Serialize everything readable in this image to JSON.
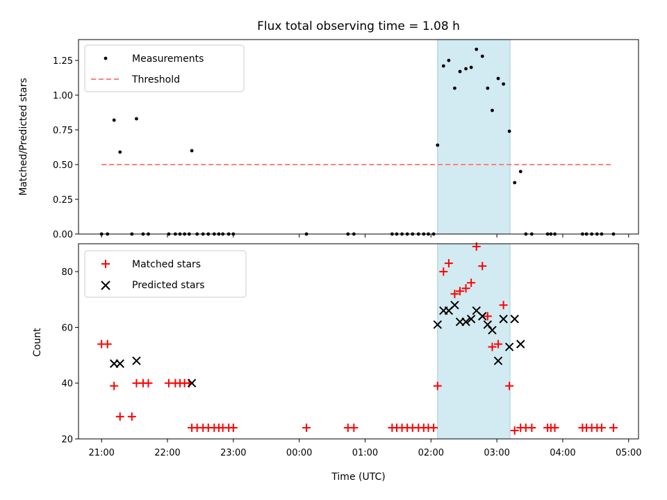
{
  "chart_data": {
    "title": "Flux total observing time = 1.08 h",
    "xlabel": "Time (UTC)",
    "x_ticks": [
      "21:00",
      "22:00",
      "23:00",
      "00:00",
      "01:00",
      "02:00",
      "03:00",
      "04:00",
      "05:00"
    ],
    "xlim_hours": [
      20.65,
      29.15
    ],
    "highlight_span_hours": [
      26.1,
      27.2
    ],
    "colors": {
      "highlight": "#add8e6",
      "matched": "#ff0000",
      "predicted": "#000000",
      "measure": "#000000",
      "threshold": "#ff7f7f"
    },
    "panels": [
      {
        "type": "scatter",
        "ylabel": "Matched/Predicted stars",
        "ylim": [
          0,
          1.4
        ],
        "yticks": [
          "0.00",
          "0.25",
          "0.50",
          "0.75",
          "1.00",
          "1.25"
        ],
        "legend": [
          "Measurements",
          "Threshold"
        ],
        "threshold": {
          "value": 0.5,
          "x_range": [
            21.0,
            28.77
          ]
        },
        "series": [
          {
            "name": "Measurements",
            "x": [
              21.0,
              21.09,
              21.19,
              21.28,
              21.46,
              21.53,
              21.63,
              21.71,
              22.02,
              22.12,
              22.19,
              22.26,
              22.33,
              22.37,
              22.45,
              22.54,
              22.62,
              22.71,
              22.78,
              22.84,
              22.93,
              23.0,
              24.11,
              24.74,
              24.83,
              25.41,
              25.48,
              25.56,
              25.64,
              25.72,
              25.81,
              25.89,
              25.96,
              26.04,
              26.1,
              26.19,
              26.27,
              26.36,
              26.44,
              26.53,
              26.61,
              26.69,
              26.78,
              26.86,
              26.93,
              27.02,
              27.1,
              27.19,
              27.27,
              27.36,
              27.44,
              27.53,
              27.77,
              27.82,
              27.88,
              28.3,
              28.36,
              28.44,
              28.52,
              28.59,
              28.77
            ],
            "y": [
              0,
              0,
              0.82,
              0.59,
              0,
              0.83,
              0,
              0,
              0,
              0,
              0,
              0,
              0,
              0.6,
              0,
              0,
              0,
              0,
              0,
              0,
              0,
              0,
              0,
              0,
              0,
              0,
              0,
              0,
              0,
              0,
              0,
              0,
              0,
              0,
              0.64,
              1.21,
              1.25,
              1.05,
              1.17,
              1.19,
              1.2,
              1.33,
              1.28,
              1.05,
              0.89,
              1.12,
              1.08,
              0.74,
              0.37,
              0.45,
              0,
              0,
              0,
              0,
              0,
              0,
              0,
              0,
              0,
              0,
              0
            ]
          }
        ]
      },
      {
        "type": "scatter",
        "ylabel": "Count",
        "ylim": [
          20,
          90
        ],
        "yticks": [
          "20",
          "40",
          "60",
          "80"
        ],
        "legend": [
          "Matched stars",
          "Predicted stars"
        ],
        "series": [
          {
            "name": "Matched stars",
            "x": [
              21.0,
              21.09,
              21.19,
              21.28,
              21.46,
              21.53,
              21.63,
              21.71,
              22.02,
              22.12,
              22.19,
              22.26,
              22.33,
              22.37,
              22.45,
              22.54,
              22.62,
              22.71,
              22.78,
              22.84,
              22.93,
              23.0,
              24.11,
              24.74,
              24.83,
              25.41,
              25.48,
              25.56,
              25.64,
              25.72,
              25.81,
              25.89,
              25.96,
              26.04,
              26.1,
              26.19,
              26.27,
              26.36,
              26.44,
              26.53,
              26.61,
              26.69,
              26.78,
              26.86,
              26.93,
              27.02,
              27.1,
              27.19,
              27.27,
              27.36,
              27.44,
              27.53,
              27.77,
              27.82,
              27.88,
              28.3,
              28.36,
              28.44,
              28.52,
              28.59,
              28.77
            ],
            "y": [
              54,
              54,
              39,
              28,
              28,
              40,
              40,
              40,
              40,
              40,
              40,
              40,
              40,
              24,
              24,
              24,
              24,
              24,
              24,
              24,
              24,
              24,
              24,
              24,
              24,
              24,
              24,
              24,
              24,
              24,
              24,
              24,
              24,
              24,
              39,
              80,
              83,
              72,
              73,
              74,
              76,
              89,
              82,
              64,
              53,
              54,
              68,
              39,
              23,
              24,
              24,
              24,
              24,
              24,
              24,
              24,
              24,
              24,
              24,
              24,
              24
            ]
          },
          {
            "name": "Predicted stars",
            "x": [
              21.19,
              21.28,
              21.53,
              22.37,
              26.1,
              26.19,
              26.27,
              26.36,
              26.44,
              26.53,
              26.61,
              26.69,
              26.78,
              26.86,
              26.93,
              27.02,
              27.1,
              27.19,
              27.27,
              27.36
            ],
            "y": [
              47,
              47,
              48,
              40,
              61,
              66,
              66,
              68,
              62,
              62,
              63,
              66,
              64,
              61,
              59,
              48,
              63,
              53,
              63,
              54
            ]
          }
        ]
      }
    ]
  }
}
